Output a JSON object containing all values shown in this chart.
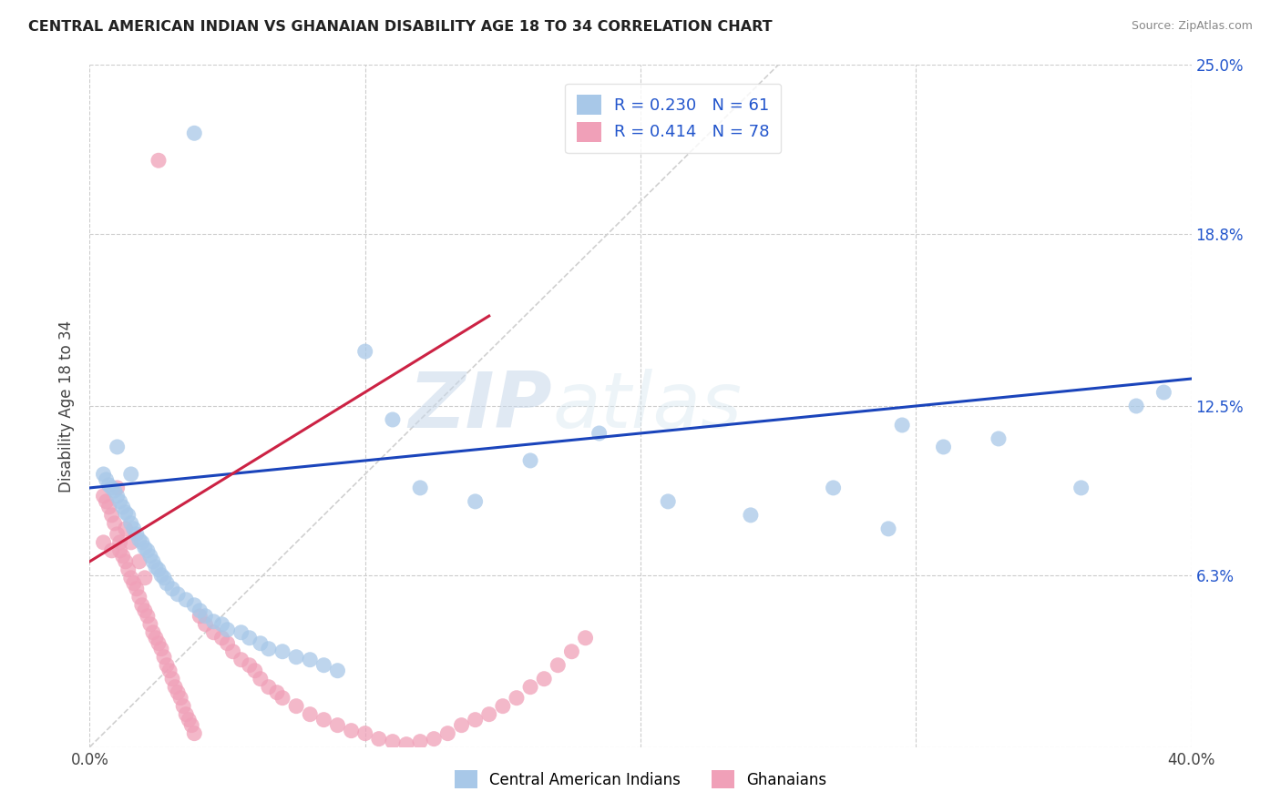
{
  "title": "CENTRAL AMERICAN INDIAN VS GHANAIAN DISABILITY AGE 18 TO 34 CORRELATION CHART",
  "source": "Source: ZipAtlas.com",
  "ylabel": "Disability Age 18 to 34",
  "x_min": 0.0,
  "x_max": 0.4,
  "y_min": 0.0,
  "y_max": 0.25,
  "grid_color": "#cccccc",
  "background_color": "#ffffff",
  "watermark_zip": "ZIP",
  "watermark_atlas": "atlas",
  "blue_R": "0.230",
  "blue_N": "61",
  "pink_R": "0.414",
  "pink_N": "78",
  "blue_color": "#a8c8e8",
  "pink_color": "#f0a0b8",
  "blue_line_color": "#1a44bb",
  "pink_line_color": "#cc2244",
  "diagonal_color": "#d0d0d0",
  "legend_label_blue": "Central American Indians",
  "legend_label_pink": "Ghanaians",
  "blue_line_x0": 0.0,
  "blue_line_y0": 0.095,
  "blue_line_x1": 0.4,
  "blue_line_y1": 0.135,
  "pink_line_x0": 0.0,
  "pink_line_y0": 0.068,
  "pink_line_x1": 0.145,
  "pink_line_y1": 0.158,
  "blue_scatter_x": [
    0.005,
    0.006,
    0.007,
    0.008,
    0.009,
    0.01,
    0.01,
    0.011,
    0.012,
    0.013,
    0.014,
    0.015,
    0.015,
    0.016,
    0.017,
    0.018,
    0.019,
    0.02,
    0.021,
    0.022,
    0.023,
    0.024,
    0.025,
    0.026,
    0.027,
    0.028,
    0.03,
    0.032,
    0.035,
    0.038,
    0.04,
    0.042,
    0.045,
    0.048,
    0.05,
    0.055,
    0.058,
    0.062,
    0.065,
    0.07,
    0.075,
    0.08,
    0.085,
    0.09,
    0.1,
    0.11,
    0.12,
    0.14,
    0.16,
    0.185,
    0.21,
    0.24,
    0.27,
    0.29,
    0.295,
    0.31,
    0.33,
    0.36,
    0.38,
    0.39,
    0.038
  ],
  "blue_scatter_y": [
    0.1,
    0.098,
    0.096,
    0.095,
    0.094,
    0.092,
    0.11,
    0.09,
    0.088,
    0.086,
    0.085,
    0.082,
    0.1,
    0.08,
    0.078,
    0.076,
    0.075,
    0.073,
    0.072,
    0.07,
    0.068,
    0.066,
    0.065,
    0.063,
    0.062,
    0.06,
    0.058,
    0.056,
    0.054,
    0.052,
    0.05,
    0.048,
    0.046,
    0.045,
    0.043,
    0.042,
    0.04,
    0.038,
    0.036,
    0.035,
    0.033,
    0.032,
    0.03,
    0.028,
    0.145,
    0.12,
    0.095,
    0.09,
    0.105,
    0.115,
    0.09,
    0.085,
    0.095,
    0.08,
    0.118,
    0.11,
    0.113,
    0.095,
    0.125,
    0.13,
    0.225
  ],
  "pink_scatter_x": [
    0.005,
    0.005,
    0.006,
    0.007,
    0.008,
    0.008,
    0.009,
    0.01,
    0.01,
    0.011,
    0.011,
    0.012,
    0.013,
    0.013,
    0.014,
    0.015,
    0.015,
    0.016,
    0.017,
    0.018,
    0.018,
    0.019,
    0.02,
    0.02,
    0.021,
    0.022,
    0.023,
    0.024,
    0.025,
    0.026,
    0.027,
    0.028,
    0.029,
    0.03,
    0.031,
    0.032,
    0.033,
    0.034,
    0.035,
    0.036,
    0.037,
    0.038,
    0.04,
    0.042,
    0.045,
    0.048,
    0.05,
    0.052,
    0.055,
    0.058,
    0.06,
    0.062,
    0.065,
    0.068,
    0.07,
    0.075,
    0.08,
    0.085,
    0.09,
    0.095,
    0.1,
    0.105,
    0.11,
    0.115,
    0.12,
    0.125,
    0.13,
    0.135,
    0.14,
    0.145,
    0.15,
    0.155,
    0.16,
    0.165,
    0.17,
    0.175,
    0.18,
    0.025
  ],
  "pink_scatter_y": [
    0.092,
    0.075,
    0.09,
    0.088,
    0.085,
    0.072,
    0.082,
    0.078,
    0.095,
    0.075,
    0.072,
    0.07,
    0.068,
    0.08,
    0.065,
    0.062,
    0.075,
    0.06,
    0.058,
    0.055,
    0.068,
    0.052,
    0.05,
    0.062,
    0.048,
    0.045,
    0.042,
    0.04,
    0.038,
    0.036,
    0.033,
    0.03,
    0.028,
    0.025,
    0.022,
    0.02,
    0.018,
    0.015,
    0.012,
    0.01,
    0.008,
    0.005,
    0.048,
    0.045,
    0.042,
    0.04,
    0.038,
    0.035,
    0.032,
    0.03,
    0.028,
    0.025,
    0.022,
    0.02,
    0.018,
    0.015,
    0.012,
    0.01,
    0.008,
    0.006,
    0.005,
    0.003,
    0.002,
    0.001,
    0.002,
    0.003,
    0.005,
    0.008,
    0.01,
    0.012,
    0.015,
    0.018,
    0.022,
    0.025,
    0.03,
    0.035,
    0.04,
    0.215
  ]
}
